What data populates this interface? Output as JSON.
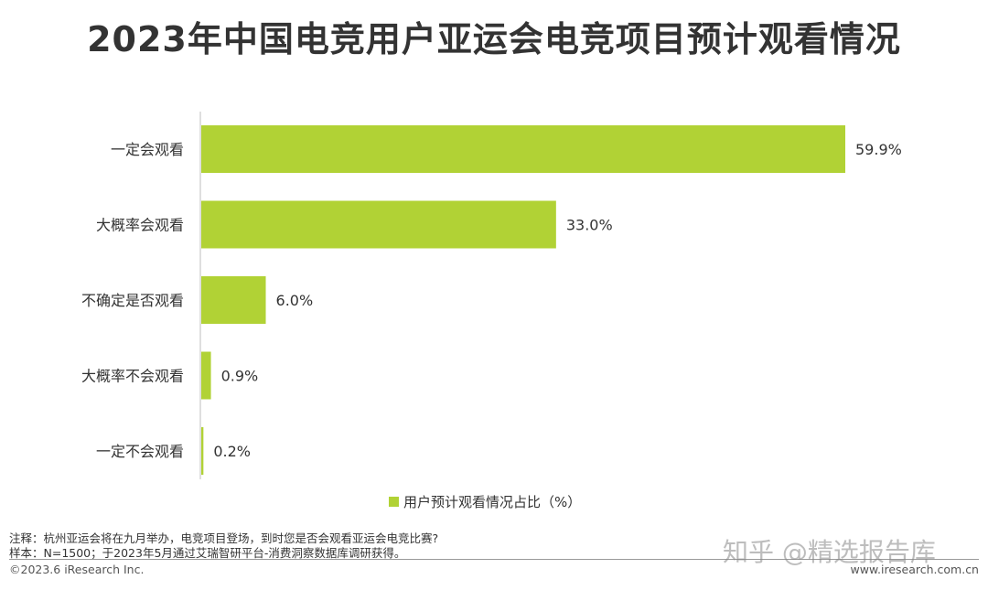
{
  "title": "2023年中国电竞用户亚运会电竞项目预计观看情况",
  "chart_data": {
    "type": "bar",
    "orientation": "horizontal",
    "categories": [
      "一定会观看",
      "大概率会观看",
      "不确定是否观看",
      "大概率不会观看",
      "一定不会观看"
    ],
    "series": [
      {
        "name": "用户预计观看情况占比（%）",
        "values": [
          59.9,
          33.0,
          6.0,
          0.9,
          0.2
        ],
        "color": "#b1d235"
      }
    ],
    "value_labels": [
      "59.9%",
      "33.0%",
      "6.0%",
      "0.9%",
      "0.2%"
    ],
    "xlim": [
      0,
      59.9
    ],
    "grid": false,
    "legend_position": "bottom-center"
  },
  "notes": {
    "note1": "注释：杭州亚运会将在九月举办，电竞项目登场，到时您是否会观看亚运会电竞比赛?",
    "note2": "样本：N=1500；于2023年5月通过艾瑞智研平台-消费洞察数据库调研获得。"
  },
  "footer": {
    "copyright": "©2023.6 iResearch Inc.",
    "website": "www.iresearch.com.cn"
  },
  "watermark": "知乎 @精选报告库",
  "colors": {
    "bar": "#b1d235",
    "axis": "#bfbfbf",
    "text": "#333333"
  }
}
